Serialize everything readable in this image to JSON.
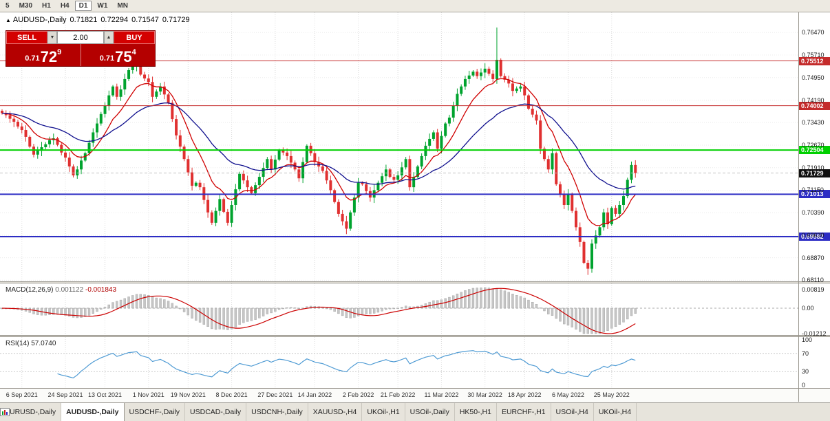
{
  "toolbar": {
    "items": [
      "5",
      "M30",
      "H1",
      "H4",
      "D1",
      "W1",
      "MN"
    ],
    "active": "D1"
  },
  "chart_header": {
    "marker": "▲",
    "symbol": "AUDUSD-,Daily",
    "open": "0.71821",
    "high": "0.72294",
    "low": "0.71547",
    "close": "0.71729"
  },
  "trade_panel": {
    "sell_label": "SELL",
    "buy_label": "BUY",
    "volume": "2.00",
    "sell_price_prefix": "0.71",
    "sell_price_big": "72",
    "sell_price_sup": "9",
    "buy_price_prefix": "0.71",
    "buy_price_big": "75",
    "buy_price_sup": "4",
    "spin_down": "▼",
    "spin_up": "▲"
  },
  "chart_data": {
    "type": "candlestick",
    "symbol": "AUDUSD-",
    "timeframe": "Daily",
    "ohlc_display": {
      "open": "0.71821",
      "high": "0.72294",
      "low": "0.71547",
      "close": "0.71729"
    },
    "ylim": [
      0.6805,
      0.7715
    ],
    "price_ticks": [
      "0.76470",
      "0.75710",
      "0.74950",
      "0.74190",
      "0.73430",
      "0.72670",
      "0.71910",
      "0.71150",
      "0.70390",
      "0.69630",
      "0.68870",
      "0.68110"
    ],
    "closes": [
      0.7375,
      0.7368,
      0.7356,
      0.7346,
      0.733,
      0.7318,
      0.7295,
      0.7262,
      0.7235,
      0.7248,
      0.726,
      0.727,
      0.7284,
      0.729,
      0.7268,
      0.7242,
      0.7225,
      0.7195,
      0.7165,
      0.7185,
      0.7215,
      0.724,
      0.7275,
      0.731,
      0.734,
      0.7372,
      0.74,
      0.7435,
      0.7465,
      0.743,
      0.7455,
      0.749,
      0.752,
      0.7532,
      0.7545,
      0.7505,
      0.7492,
      0.748,
      0.743,
      0.7448,
      0.7465,
      0.7438,
      0.741,
      0.7355,
      0.73,
      0.7262,
      0.722,
      0.7175,
      0.713,
      0.714,
      0.7125,
      0.7082,
      0.704,
      0.7005,
      0.7045,
      0.7085,
      0.7042,
      0.7005,
      0.7065,
      0.7118,
      0.717,
      0.7148,
      0.7125,
      0.7105,
      0.7132,
      0.716,
      0.719,
      0.722,
      0.7185,
      0.7218,
      0.725,
      0.7242,
      0.723,
      0.7208,
      0.7185,
      0.7155,
      0.721,
      0.7265,
      0.724,
      0.721,
      0.7195,
      0.718,
      0.7148,
      0.7115,
      0.7075,
      0.7035,
      0.701,
      0.6985,
      0.704,
      0.709,
      0.714,
      0.7135,
      0.7112,
      0.709,
      0.7115,
      0.714,
      0.7162,
      0.7185,
      0.716,
      0.715,
      0.7165,
      0.7192,
      0.722,
      0.7125,
      0.716,
      0.7195,
      0.723,
      0.7265,
      0.7288,
      0.731,
      0.7255,
      0.7298,
      0.734,
      0.736,
      0.74,
      0.744,
      0.7465,
      0.749,
      0.7502,
      0.7515,
      0.75,
      0.7512,
      0.7525,
      0.7508,
      0.749,
      0.7555,
      0.75,
      0.7488,
      0.7475,
      0.745,
      0.7458,
      0.7465,
      0.7435,
      0.739,
      0.737,
      0.735,
      0.7255,
      0.722,
      0.7185,
      0.724,
      0.7135,
      0.71,
      0.7065,
      0.71,
      0.7045,
      0.699,
      0.694,
      0.687,
      0.685,
      0.6935,
      0.6962,
      0.699,
      0.704,
      0.7,
      0.7055,
      0.7035,
      0.7065,
      0.7095,
      0.715,
      0.72,
      0.7173
    ],
    "wick_overrides": [
      {
        "i": 125,
        "high": 0.7664
      },
      {
        "i": 148,
        "low": 0.6829
      }
    ],
    "levels": [
      {
        "value": 0.75512,
        "label": "0.75512",
        "color": "#C42B2B",
        "width": 1
      },
      {
        "value": 0.74002,
        "label": "0.74002",
        "color": "#C42B2B",
        "width": 1
      },
      {
        "value": 0.72504,
        "label": "0.72504",
        "color": "#00D000",
        "width": 2
      },
      {
        "value": 0.71013,
        "label": "0.71013",
        "color": "#2D2DC4",
        "width": 2
      },
      {
        "value": 0.69582,
        "label": "0.69582",
        "color": "#2D2DC4",
        "width": 2
      }
    ],
    "current_price": {
      "value": 0.71729,
      "label": "0.71729",
      "color": "#101010"
    },
    "x_dates": [
      {
        "label": "6 Sep 2021",
        "i": 5
      },
      {
        "label": "24 Sep 2021",
        "i": 16
      },
      {
        "label": "13 Oct 2021",
        "i": 26
      },
      {
        "label": "1 Nov 2021",
        "i": 37
      },
      {
        "label": "19 Nov 2021",
        "i": 47
      },
      {
        "label": "8 Dec 2021",
        "i": 58
      },
      {
        "label": "27 Dec 2021",
        "i": 69
      },
      {
        "label": "14 Jan 2022",
        "i": 79
      },
      {
        "label": "2 Feb 2022",
        "i": 90
      },
      {
        "label": "21 Feb 2022",
        "i": 100
      },
      {
        "label": "11 Mar 2022",
        "i": 111
      },
      {
        "label": "30 Mar 2022",
        "i": 122
      },
      {
        "label": "18 Apr 2022",
        "i": 132
      },
      {
        "label": "6 May 2022",
        "i": 143
      },
      {
        "label": "25 May 2022",
        "i": 154
      }
    ],
    "moving_averages": [
      {
        "period": 10,
        "color": "#D00000"
      },
      {
        "period": 30,
        "color": "#10108E"
      }
    ],
    "macd": {
      "label": "MACD(12,26,9)",
      "main_value": "0.001122",
      "signal_value": "-0.001843",
      "fast": 12,
      "slow": 26,
      "signal": 9,
      "axis": [
        {
          "label": "0.00819",
          "v": 0.00819
        },
        {
          "label": "0.00",
          "v": 0
        },
        {
          "label": "-0.01212",
          "v": -0.01212
        }
      ]
    },
    "rsi": {
      "label": "RSI(14)",
      "value": "57.0740",
      "period": 14,
      "axis": [
        {
          "label": "100",
          "v": 100
        },
        {
          "label": "70",
          "v": 70
        },
        {
          "label": "30",
          "v": 30
        },
        {
          "label": "0",
          "v": 0
        }
      ],
      "level_lines": [
        70,
        30
      ]
    },
    "colors": {
      "up": "#00A32E",
      "down": "#E03030",
      "macd_hist": "#C6C6C6",
      "macd_hist_edge": "#9E9E9E",
      "macd_signal": "#CC0000",
      "rsi_line": "#4F9BD4",
      "grid": "#DCDCDC",
      "hgrid": "#ECECEC"
    }
  },
  "tabs": [
    {
      "label": "EURUSD-,Daily",
      "active": false
    },
    {
      "label": "AUDUSD-,Daily",
      "active": true
    },
    {
      "label": "USDCHF-,Daily",
      "active": false
    },
    {
      "label": "USDCAD-,Daily",
      "active": false
    },
    {
      "label": "USDCNH-,Daily",
      "active": false
    },
    {
      "label": "XAUUSD-,H4",
      "active": false
    },
    {
      "label": "UKOil-,H1",
      "active": false
    },
    {
      "label": "USOil-,Daily",
      "active": false
    },
    {
      "label": "HK50-,H1",
      "active": false
    },
    {
      "label": "EURCHF-,H1",
      "active": false
    },
    {
      "label": "USOil-,H4",
      "active": false
    },
    {
      "label": "UKOil-,H4",
      "active": false
    }
  ]
}
